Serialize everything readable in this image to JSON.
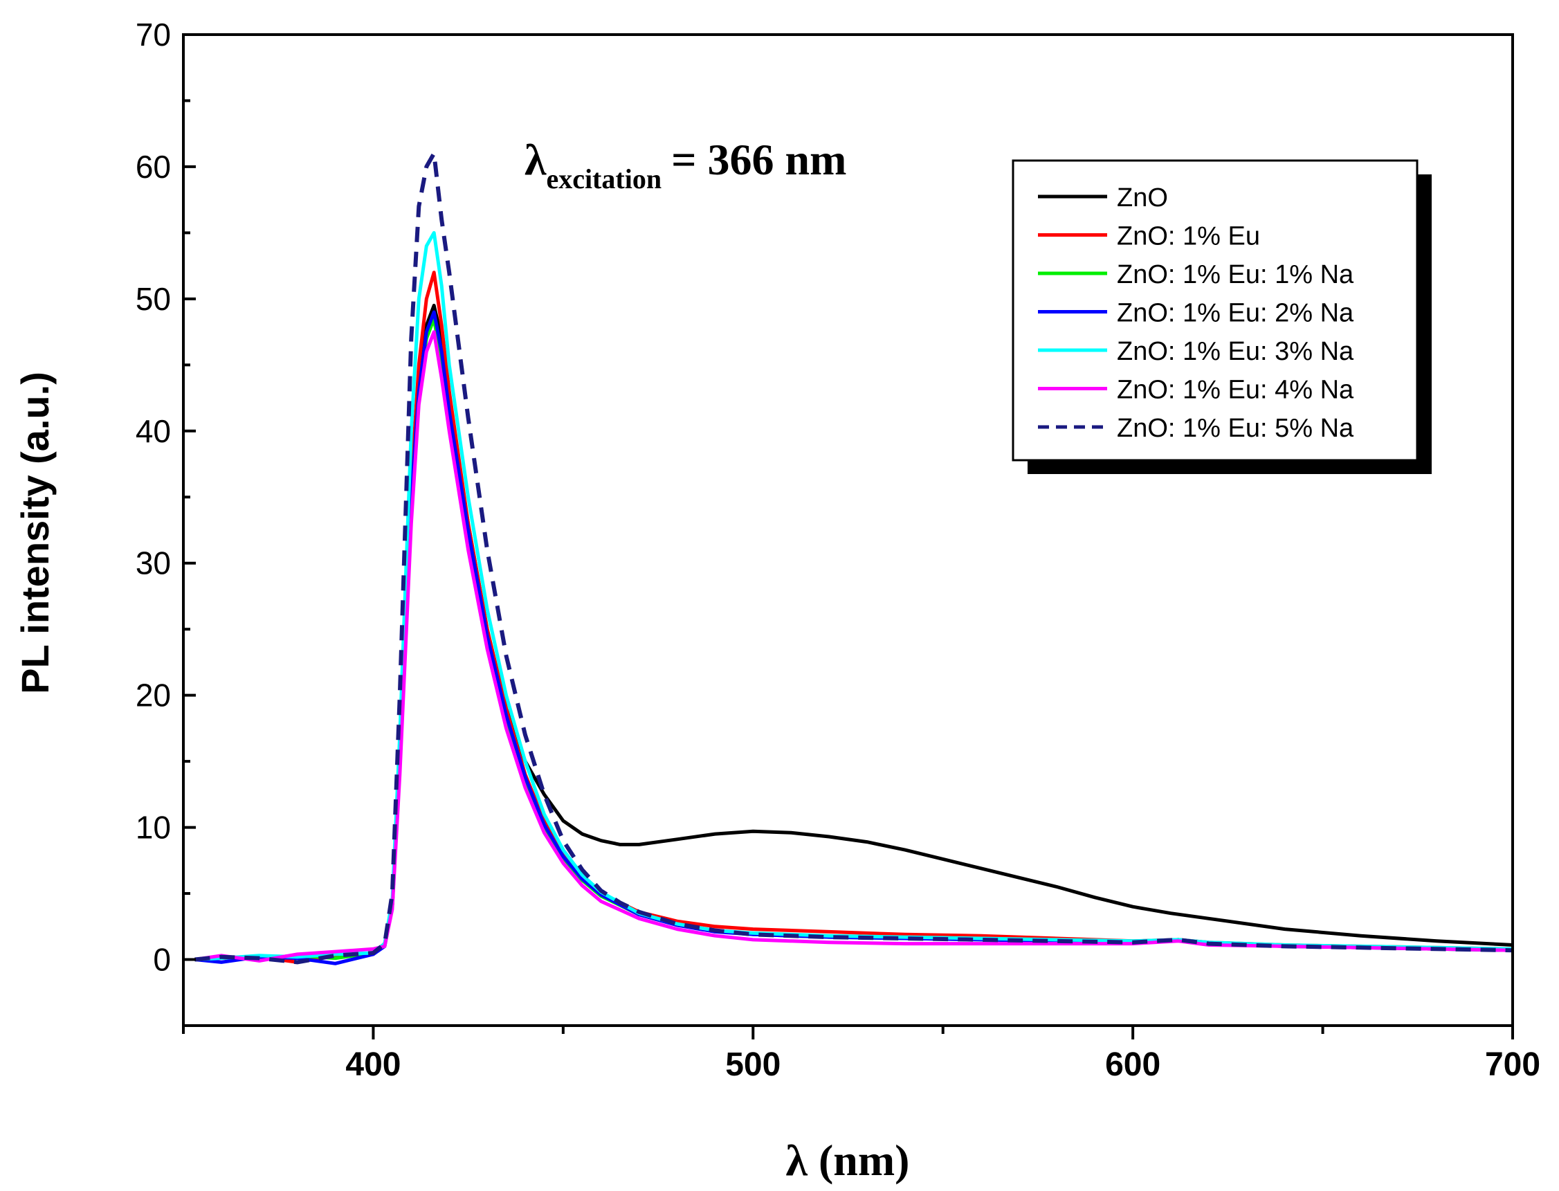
{
  "chart_data": {
    "type": "line",
    "title": "",
    "xlabel": "λ (nm)",
    "ylabel": "PL intensity (a.u.)",
    "xlim": [
      350,
      700
    ],
    "ylim": [
      -5,
      70
    ],
    "x_ticks": [
      "400",
      "500",
      "600",
      "700"
    ],
    "y_ticks": [
      "0",
      "10",
      "20",
      "30",
      "40",
      "50",
      "60",
      "70"
    ],
    "annotation": {
      "symbol": "λ",
      "subscript": "excitation",
      "value": "= 366 nm"
    },
    "legend_position": "top-right",
    "series": [
      {
        "name": "ZnO",
        "color": "#000000",
        "dashed": false,
        "x": [
          353,
          360,
          370,
          380,
          390,
          400,
          403,
          405,
          407,
          410,
          412,
          414,
          416,
          418,
          420,
          425,
          430,
          435,
          440,
          445,
          450,
          455,
          460,
          465,
          470,
          480,
          490,
          500,
          510,
          520,
          530,
          540,
          550,
          560,
          570,
          580,
          590,
          600,
          610,
          620,
          640,
          660,
          680,
          700
        ],
        "y": [
          0,
          0.2,
          0.1,
          0.3,
          0.2,
          0.5,
          1.2,
          4,
          15,
          35,
          44,
          48,
          49.5,
          47,
          42,
          33,
          25,
          19,
          15,
          12.5,
          10.5,
          9.5,
          9,
          8.7,
          8.7,
          9.1,
          9.5,
          9.7,
          9.6,
          9.3,
          8.9,
          8.3,
          7.6,
          6.9,
          6.2,
          5.5,
          4.7,
          4,
          3.5,
          3.1,
          2.3,
          1.8,
          1.4,
          1.1
        ]
      },
      {
        "name": "ZnO: 1% Eu",
        "color": "#ff0000",
        "dashed": false,
        "x": [
          353,
          360,
          370,
          380,
          390,
          400,
          403,
          405,
          407,
          410,
          412,
          414,
          416,
          418,
          420,
          425,
          430,
          435,
          440,
          445,
          450,
          455,
          460,
          470,
          480,
          490,
          500,
          520,
          540,
          560,
          580,
          600,
          612,
          620,
          640,
          660,
          680,
          700
        ],
        "y": [
          0,
          0.1,
          0.2,
          -0.2,
          0.3,
          0.4,
          1.1,
          4,
          15,
          36,
          45,
          50,
          52,
          48,
          43,
          33,
          25,
          19,
          14,
          10.5,
          8,
          6.2,
          5,
          3.6,
          2.9,
          2.5,
          2.3,
          2.1,
          1.9,
          1.8,
          1.6,
          1.4,
          1.5,
          1.3,
          1.1,
          1,
          0.9,
          0.8
        ]
      },
      {
        "name": "ZnO: 1% Eu: 1% Na",
        "color": "#00ee00",
        "dashed": false,
        "x": [
          353,
          360,
          370,
          380,
          390,
          400,
          403,
          405,
          407,
          410,
          412,
          414,
          416,
          418,
          420,
          425,
          430,
          435,
          440,
          445,
          450,
          455,
          460,
          470,
          480,
          490,
          500,
          520,
          540,
          560,
          580,
          600,
          612,
          620,
          640,
          660,
          680,
          700
        ],
        "y": [
          0,
          0.2,
          0.1,
          0.3,
          0.1,
          0.5,
          1,
          4,
          15,
          35,
          43,
          47,
          48.5,
          45,
          41,
          32,
          24,
          18,
          13.5,
          10,
          7.7,
          6,
          4.8,
          3.4,
          2.6,
          2.2,
          1.9,
          1.7,
          1.6,
          1.5,
          1.4,
          1.3,
          1.5,
          1.2,
          1,
          0.9,
          0.8,
          0.7
        ]
      },
      {
        "name": "ZnO: 1% Eu: 2% Na",
        "color": "#0000ff",
        "dashed": false,
        "x": [
          353,
          360,
          370,
          380,
          390,
          400,
          403,
          405,
          407,
          410,
          412,
          414,
          416,
          418,
          420,
          425,
          430,
          435,
          440,
          445,
          450,
          455,
          460,
          470,
          480,
          490,
          500,
          520,
          540,
          560,
          580,
          600,
          612,
          620,
          640,
          660,
          680,
          700
        ],
        "y": [
          0,
          -0.2,
          0.2,
          0.1,
          -0.3,
          0.4,
          1,
          4,
          15,
          35,
          43,
          47.5,
          49,
          46,
          41.5,
          32.5,
          24.5,
          18.5,
          13.8,
          10.2,
          7.8,
          6.1,
          4.9,
          3.4,
          2.6,
          2.1,
          1.9,
          1.7,
          1.6,
          1.5,
          1.4,
          1.3,
          1.5,
          1.2,
          1,
          0.9,
          0.8,
          0.7
        ]
      },
      {
        "name": "ZnO: 1% Eu: 3% Na",
        "color": "#00ffff",
        "dashed": false,
        "x": [
          353,
          360,
          370,
          380,
          390,
          400,
          403,
          405,
          407,
          410,
          412,
          414,
          416,
          418,
          420,
          425,
          430,
          435,
          440,
          445,
          450,
          455,
          460,
          470,
          480,
          490,
          500,
          520,
          540,
          560,
          580,
          600,
          612,
          620,
          640,
          660,
          680,
          700
        ],
        "y": [
          0,
          0.1,
          0.3,
          0.2,
          0.4,
          0.5,
          1.2,
          4.5,
          17,
          40,
          50,
          54,
          55,
          51,
          45,
          35,
          26.5,
          20,
          15,
          11,
          8.3,
          6.4,
          5.1,
          3.5,
          2.7,
          2.2,
          2,
          1.8,
          1.7,
          1.6,
          1.5,
          1.4,
          1.5,
          1.3,
          1.1,
          1,
          0.9,
          0.8
        ]
      },
      {
        "name": "ZnO: 1% Eu: 4% Na",
        "color": "#ff00ff",
        "dashed": false,
        "x": [
          353,
          360,
          370,
          380,
          390,
          400,
          403,
          405,
          407,
          410,
          412,
          414,
          416,
          418,
          420,
          425,
          430,
          435,
          440,
          445,
          450,
          455,
          460,
          470,
          480,
          490,
          500,
          520,
          540,
          560,
          580,
          600,
          612,
          620,
          640,
          660,
          680,
          700
        ],
        "y": [
          0,
          0.3,
          -0.1,
          0.4,
          0.6,
          0.8,
          1,
          3.8,
          14,
          33,
          42,
          46,
          47.5,
          44,
          40,
          31,
          23.5,
          17.5,
          13,
          9.6,
          7.3,
          5.6,
          4.4,
          3.1,
          2.3,
          1.8,
          1.5,
          1.3,
          1.2,
          1.2,
          1.2,
          1.2,
          1.4,
          1.1,
          1,
          0.9,
          0.8,
          0.7
        ]
      },
      {
        "name": "ZnO: 1% Eu: 5% Na",
        "color": "#1a1a80",
        "dashed": true,
        "x": [
          353,
          360,
          370,
          380,
          390,
          400,
          403,
          405,
          407,
          410,
          412,
          414,
          416,
          418,
          420,
          425,
          430,
          435,
          440,
          445,
          450,
          455,
          460,
          465,
          470,
          480,
          490,
          500,
          520,
          540,
          560,
          580,
          600,
          612,
          620,
          640,
          660,
          680,
          700
        ],
        "y": [
          0,
          0.2,
          0.1,
          -0.2,
          0.3,
          0.5,
          1.2,
          5,
          20,
          47,
          57,
          60,
          61,
          56,
          52,
          41,
          31,
          23,
          17,
          12.5,
          9,
          6.8,
          5.2,
          4.3,
          3.6,
          2.7,
          2.2,
          1.9,
          1.7,
          1.6,
          1.5,
          1.4,
          1.3,
          1.5,
          1.2,
          1,
          0.9,
          0.8,
          0.7
        ]
      }
    ]
  }
}
